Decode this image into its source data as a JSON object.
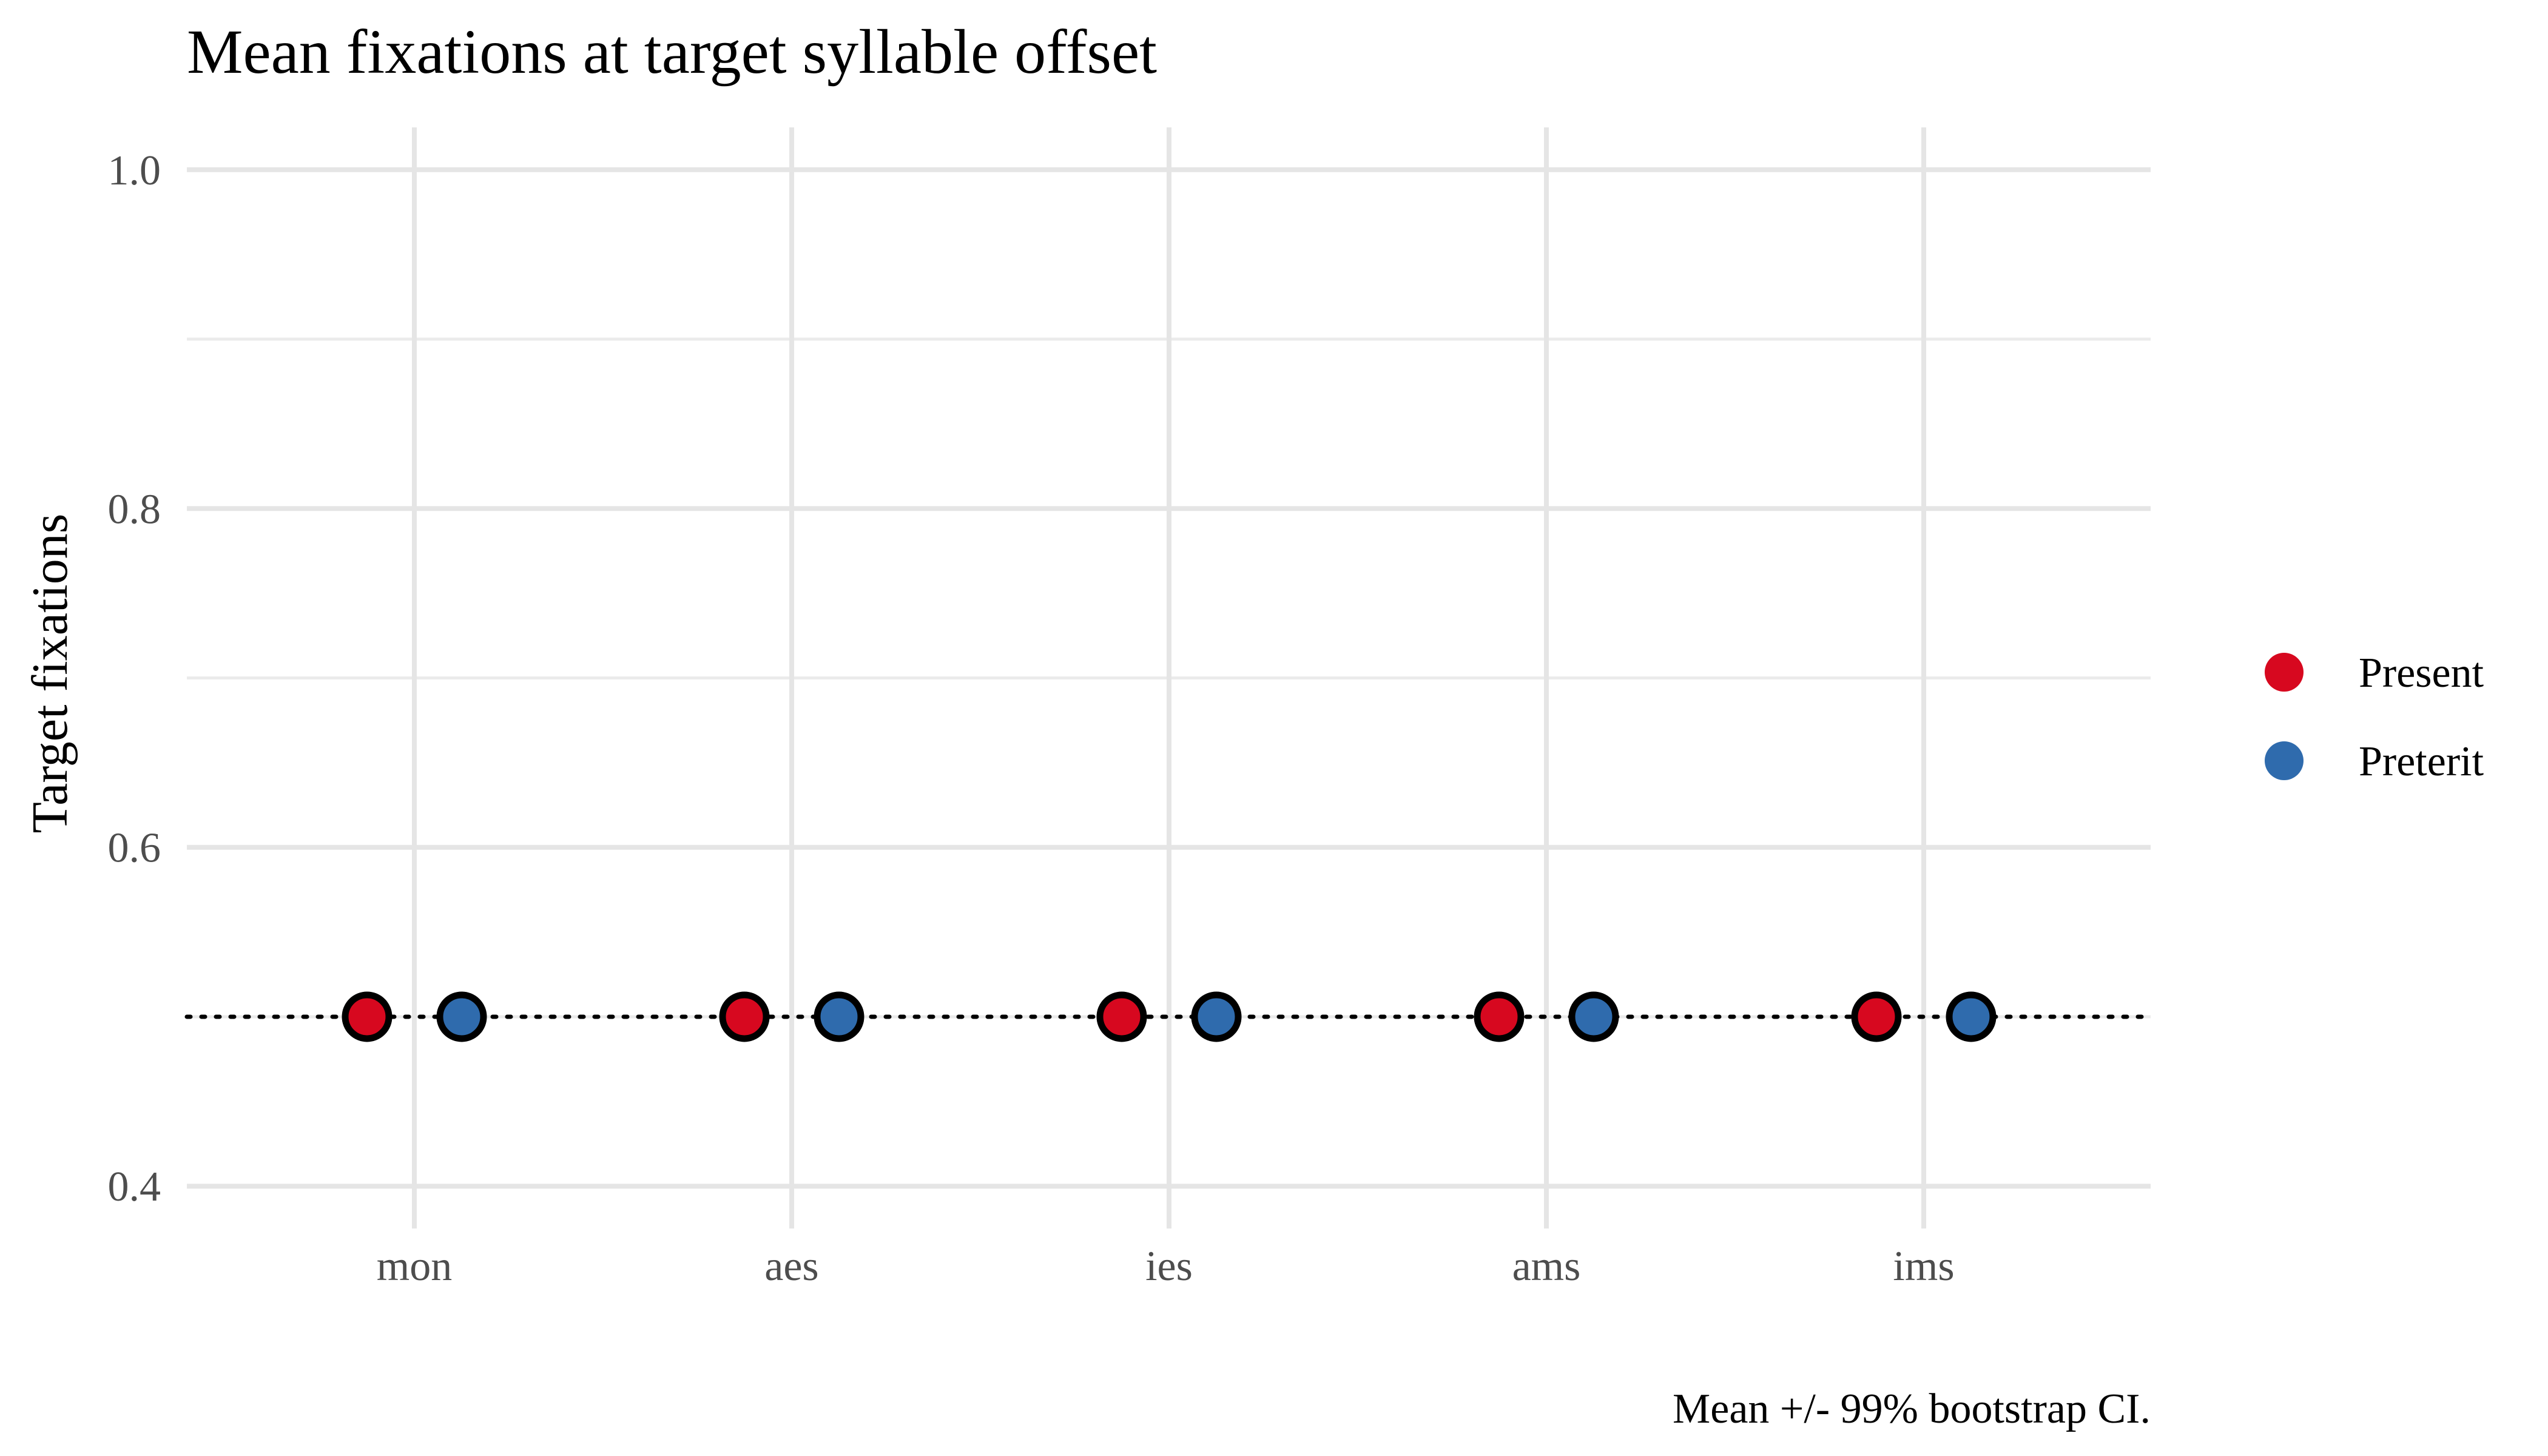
{
  "chart_data": {
    "type": "scatter",
    "title": "Mean fixations at target syllable offset",
    "xlabel": "",
    "ylabel": "Target fixations",
    "caption": "Mean +/- 99% bootstrap CI.",
    "categories": [
      "mon",
      "aes",
      "ies",
      "ams",
      "ims"
    ],
    "ylim": [
      0.375,
      1.025
    ],
    "yticks": [
      0.4,
      0.6,
      0.8,
      1.0
    ],
    "ytick_labels": [
      "0.4",
      "0.6",
      "0.8",
      "1.0"
    ],
    "y_minor_gridlines": [
      0.5,
      0.7,
      0.9
    ],
    "grid": true,
    "reference_line": {
      "y": 0.5,
      "style": "dotted"
    },
    "legend": {
      "position": "right",
      "entries": [
        "Present",
        "Preterit"
      ]
    },
    "series": [
      {
        "name": "Present",
        "color": "#d7081f",
        "values": [
          0.5,
          0.5,
          0.5,
          0.5,
          0.5
        ]
      },
      {
        "name": "Preterit",
        "color": "#2f6bad",
        "values": [
          0.5,
          0.5,
          0.5,
          0.5,
          0.5
        ]
      }
    ]
  }
}
